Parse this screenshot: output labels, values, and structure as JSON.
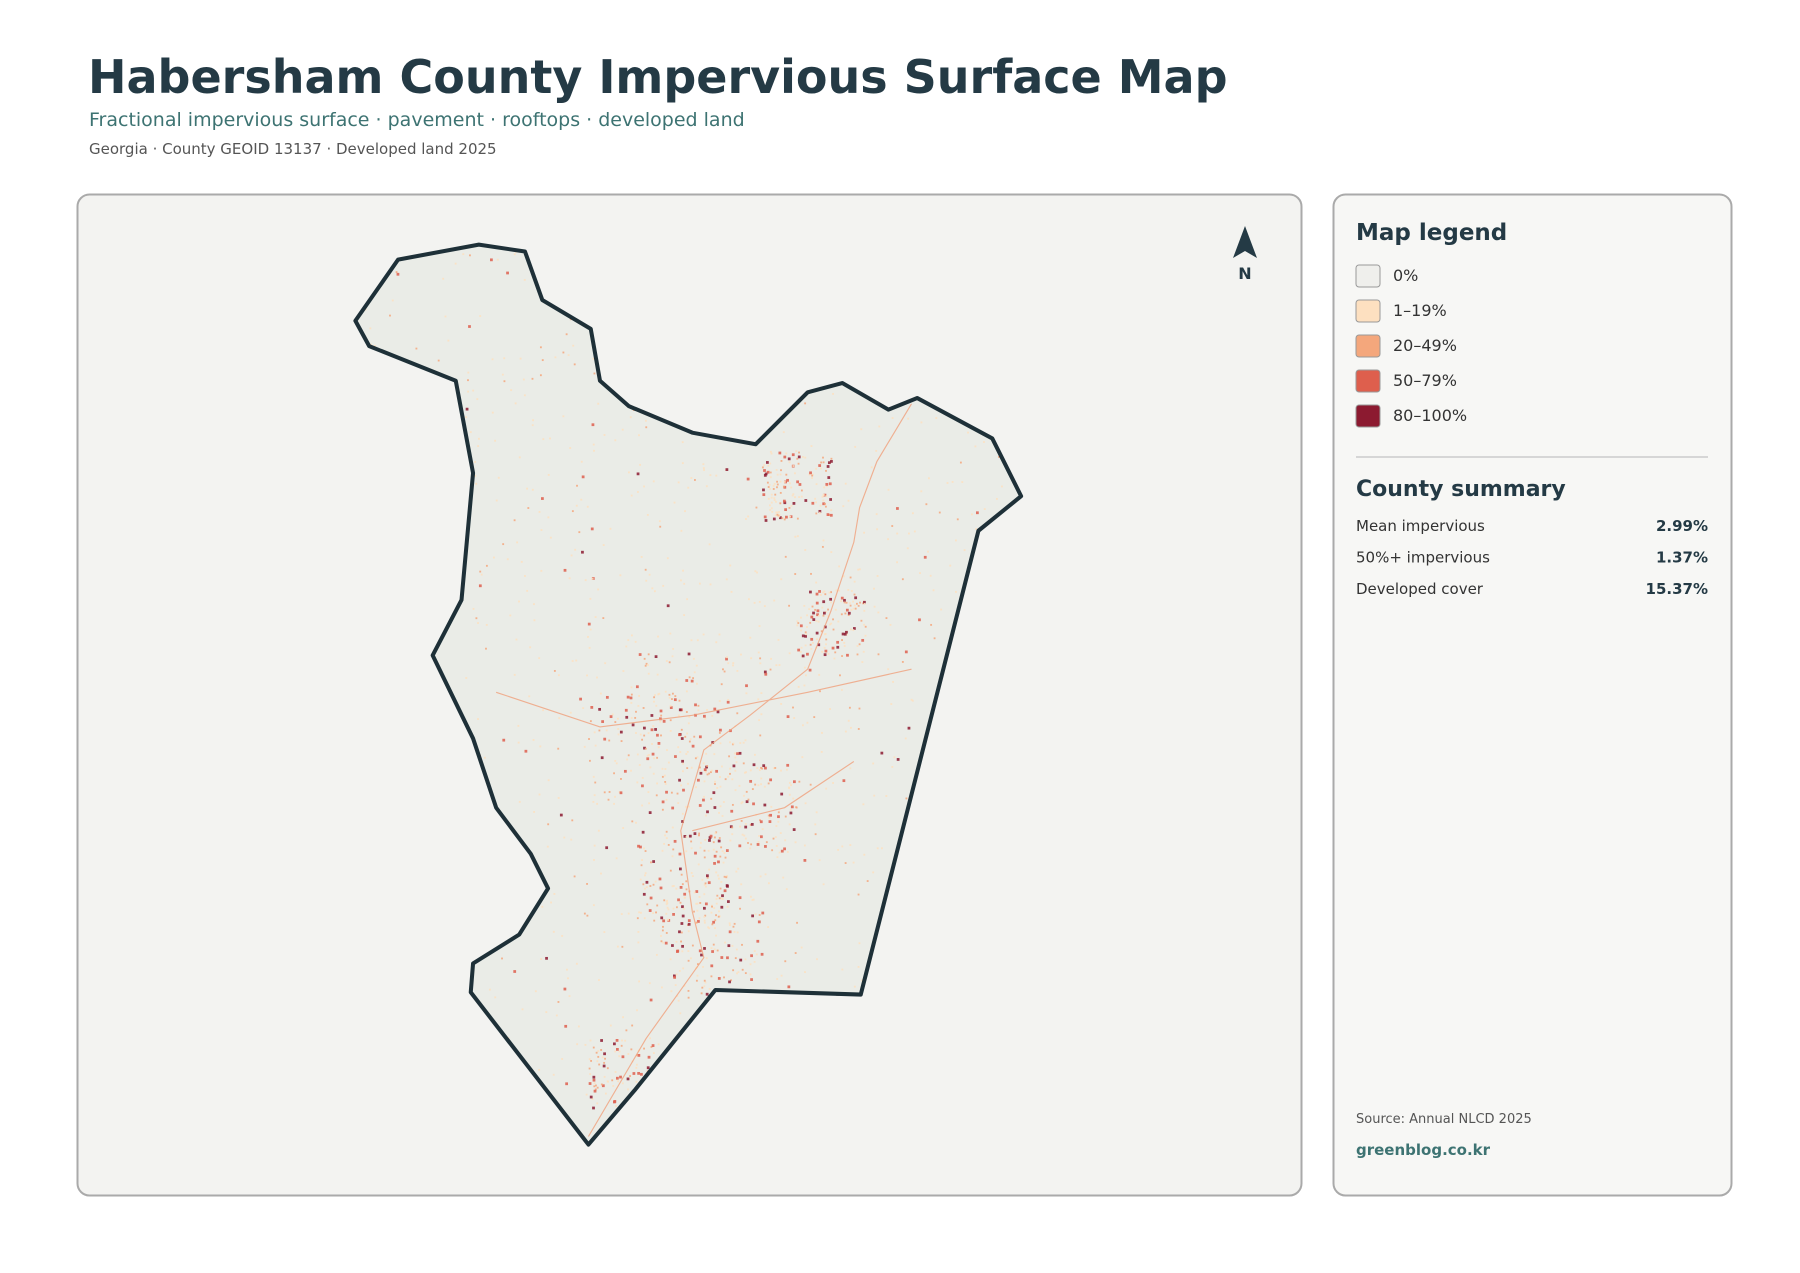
{
  "header": {
    "title": "Habersham County Impervious Surface Map",
    "subtitle": "Fractional impervious surface · pavement · rooftops · developed land",
    "meta": "Georgia · County GEOID 13137 · Developed land 2025"
  },
  "map": {
    "north": "N"
  },
  "legend": {
    "title": "Map legend",
    "items": [
      {
        "label": "0%",
        "color": "#efefec"
      },
      {
        "label": "1–19%",
        "color": "#fde0c0"
      },
      {
        "label": "20–49%",
        "color": "#f4a77c"
      },
      {
        "label": "50–79%",
        "color": "#de5f4d"
      },
      {
        "label": "80–100%",
        "color": "#8c1a30"
      }
    ]
  },
  "summary": {
    "title": "County summary",
    "rows": [
      {
        "label": "Mean impervious",
        "value": "2.99%"
      },
      {
        "label": "50%+ impervious",
        "value": "1.37%"
      },
      {
        "label": "Developed cover",
        "value": "15.37%"
      }
    ]
  },
  "footer": {
    "source": "Source: Annual NLCD 2025",
    "site": "greenblog.co.kr"
  }
}
